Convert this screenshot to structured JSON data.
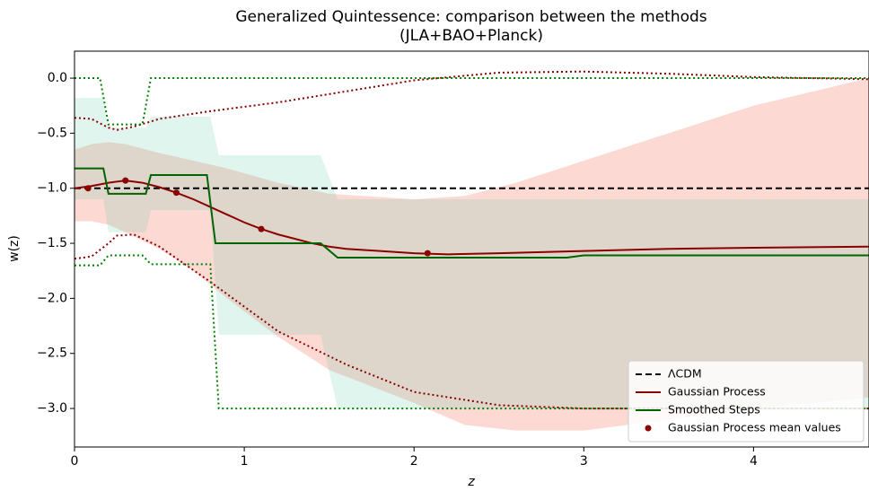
{
  "chart_data": {
    "type": "line",
    "title": "Generalized Quintessence: comparison between the methods",
    "subtitle": "(JLA+BAO+Planck)",
    "xlabel": "z",
    "ylabel": "w(z)",
    "xlim": [
      0,
      4.68
    ],
    "ylim": [
      -3.35,
      0.245
    ],
    "xticks": [
      0,
      1,
      2,
      3,
      4
    ],
    "yticks": [
      {
        "value": 0,
        "label": "0.0"
      },
      {
        "value": -0.5,
        "label": "−0.5"
      },
      {
        "value": -1,
        "label": "−1.0"
      },
      {
        "value": -1.5,
        "label": "−1.5"
      },
      {
        "value": -2,
        "label": "−2.0"
      },
      {
        "value": -2.5,
        "label": "−2.5"
      },
      {
        "value": -3,
        "label": "−3.0"
      }
    ],
    "legend": "lower right",
    "bands": [
      {
        "color": "#fa8072",
        "x": [
          0,
          0.1,
          0.2,
          0.3,
          0.5,
          0.7,
          0.9,
          1.2,
          1.5,
          2.0,
          2.3,
          2.6,
          3.0,
          3.5,
          4.0,
          4.68
        ],
        "upper": [
          -0.65,
          -0.6,
          -0.58,
          -0.6,
          -0.68,
          -0.75,
          -0.82,
          -0.95,
          -1.05,
          -1.1,
          -1.07,
          -0.95,
          -0.75,
          -0.5,
          -0.25,
          0.0
        ],
        "lower": [
          -1.3,
          -1.3,
          -1.33,
          -1.4,
          -1.55,
          -1.75,
          -2.0,
          -2.35,
          -2.65,
          -2.95,
          -3.15,
          -3.2,
          -3.2,
          -3.1,
          -3.0,
          -2.9
        ]
      },
      {
        "color": "#66cdaa",
        "x": [
          0,
          0.17,
          0.2,
          0.42,
          0.45,
          0.8,
          0.85,
          1.45,
          1.55,
          4.68
        ],
        "upper": [
          -0.18,
          -0.18,
          -0.45,
          -0.45,
          -0.35,
          -0.35,
          -0.7,
          -0.7,
          -1.1,
          -1.1
        ],
        "lower": [
          -1.1,
          -1.1,
          -1.4,
          -1.4,
          -1.2,
          -1.2,
          -2.33,
          -2.33,
          -3.0,
          -3.0
        ]
      }
    ],
    "bounds": [
      {
        "color": "#8b0000",
        "x": [
          0,
          0.1,
          0.2,
          0.25,
          0.35,
          0.5,
          0.8,
          1.2,
          1.6,
          2.0,
          2.5,
          3.0,
          3.5,
          4.0,
          4.68
        ],
        "upper": [
          -0.36,
          -0.37,
          -0.45,
          -0.47,
          -0.44,
          -0.37,
          -0.3,
          -0.22,
          -0.12,
          -0.02,
          0.05,
          0.06,
          0.04,
          0.01,
          -0.01
        ],
        "lower": [
          -1.64,
          -1.62,
          -1.5,
          -1.43,
          -1.42,
          -1.53,
          -1.85,
          -2.3,
          -2.6,
          -2.85,
          -2.97,
          -3.0,
          -3.0,
          -3.0,
          -3.0
        ]
      },
      {
        "color": "#008000",
        "x": [
          0,
          0.15,
          0.2,
          0.4,
          0.45,
          0.8,
          0.85,
          4.68
        ],
        "upper": [
          0,
          0,
          -0.42,
          -0.42,
          0,
          0,
          0,
          0
        ],
        "lower": [
          -1.7,
          -1.7,
          -1.61,
          -1.61,
          -1.69,
          -1.69,
          -3.0,
          -3.0
        ]
      }
    ],
    "series": [
      {
        "name": "ΛCDM",
        "color": "#000000",
        "style": "dashed",
        "x": [
          0,
          4.68
        ],
        "values": [
          -1,
          -1
        ]
      },
      {
        "name": "Gaussian Process",
        "color": "#8b0000",
        "style": "solid",
        "x": [
          0,
          0.1,
          0.2,
          0.3,
          0.4,
          0.5,
          0.6,
          0.7,
          0.8,
          0.9,
          1.0,
          1.1,
          1.2,
          1.3,
          1.4,
          1.5,
          1.6,
          1.8,
          2.0,
          2.2,
          2.5,
          3.0,
          3.5,
          4.0,
          4.68
        ],
        "values": [
          -1.0,
          -0.98,
          -0.95,
          -0.93,
          -0.95,
          -0.99,
          -1.04,
          -1.1,
          -1.17,
          -1.24,
          -1.31,
          -1.37,
          -1.42,
          -1.46,
          -1.5,
          -1.53,
          -1.55,
          -1.57,
          -1.59,
          -1.6,
          -1.59,
          -1.57,
          -1.55,
          -1.54,
          -1.53
        ]
      },
      {
        "name": "Smoothed Steps",
        "color": "#006400",
        "style": "solid",
        "x": [
          0,
          0.17,
          0.2,
          0.42,
          0.45,
          0.78,
          0.83,
          1.45,
          1.55,
          2.9,
          3.0,
          4.68
        ],
        "values": [
          -0.82,
          -0.82,
          -1.05,
          -1.05,
          -0.88,
          -0.88,
          -1.5,
          -1.5,
          -1.63,
          -1.63,
          -1.61,
          -1.61
        ]
      }
    ],
    "points": {
      "name": "Gaussian Process mean values",
      "color": "#8b0000",
      "x": [
        0.08,
        0.3,
        0.6,
        1.1,
        2.08
      ],
      "values": [
        -1.0,
        -0.93,
        -1.04,
        -1.37,
        -1.59
      ]
    }
  }
}
